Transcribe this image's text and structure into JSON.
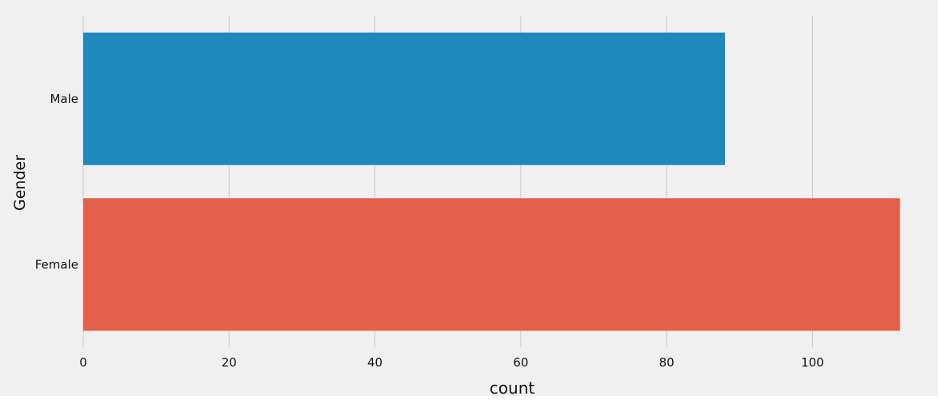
{
  "chart_data": {
    "type": "bar",
    "orientation": "horizontal",
    "title": "",
    "xlabel": "count",
    "ylabel": "Gender",
    "categories": [
      "Male",
      "Female"
    ],
    "values": [
      88,
      112
    ],
    "colors": [
      "#1f88bd",
      "#e4604a"
    ],
    "xlim": [
      0,
      114
    ],
    "xticks": [
      0,
      20,
      40,
      60,
      80,
      100
    ],
    "xtick_labels": [
      "0",
      "20",
      "40",
      "60",
      "80",
      "100"
    ],
    "grid": true,
    "background": "#f0f0f0",
    "gridline_color": "#cbcbcb"
  }
}
